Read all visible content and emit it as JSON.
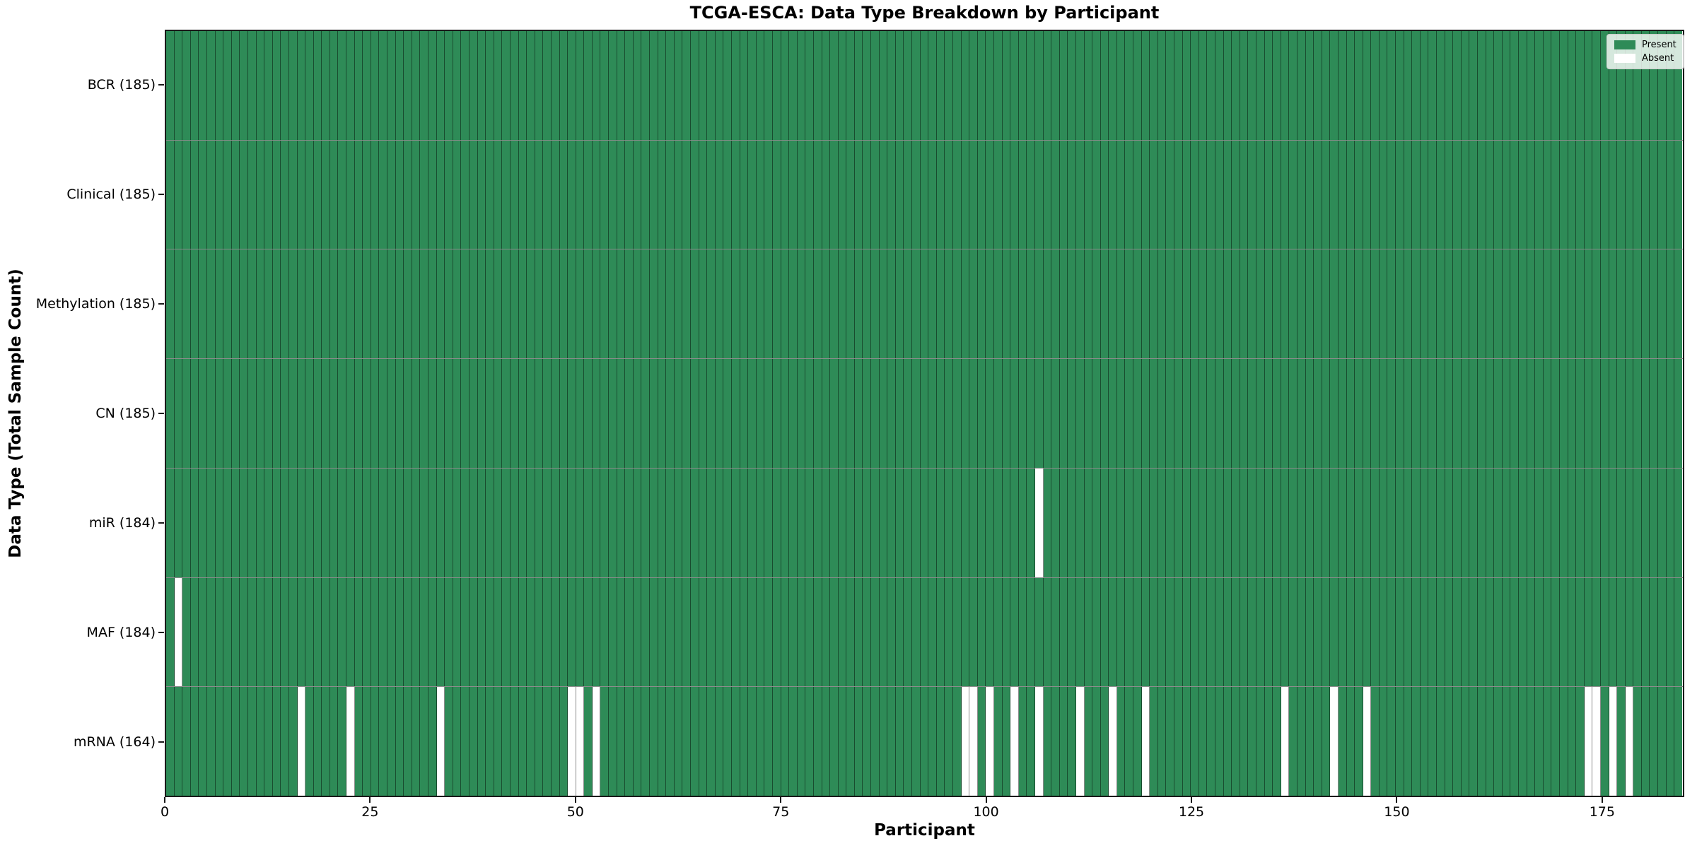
{
  "chart_data": {
    "type": "heatmap",
    "title": "TCGA-ESCA: Data Type Breakdown by Participant",
    "xlabel": "Participant",
    "ylabel": "Data Type (Total Sample Count)",
    "n_participants": 185,
    "xlim": [
      0,
      185
    ],
    "x_ticks": [
      0,
      25,
      50,
      75,
      100,
      125,
      150,
      175
    ],
    "grid": "cell-edges",
    "legend": {
      "position": "upper-right",
      "entries": [
        {
          "label": "Present",
          "value": "present"
        },
        {
          "label": "Absent",
          "value": "absent"
        }
      ]
    },
    "colors": {
      "present": "#2e8b57",
      "absent": "#ffffff",
      "cell_edge": "rgba(0,0,0,0.45)",
      "spine": "#1a1a1a",
      "text": "#000000"
    },
    "ytick_label_format": "{label} ({total})",
    "rows": [
      {
        "label": "BCR",
        "total": 185,
        "absent_participants": []
      },
      {
        "label": "Clinical",
        "total": 185,
        "absent_participants": []
      },
      {
        "label": "Methylation",
        "total": 185,
        "absent_participants": []
      },
      {
        "label": "CN",
        "total": 185,
        "absent_participants": []
      },
      {
        "label": "miR",
        "total": 184,
        "absent_participants": [
          106
        ]
      },
      {
        "label": "MAF",
        "total": 184,
        "absent_participants": [
          1
        ]
      },
      {
        "label": "mRNA",
        "total": 164,
        "absent_participants": [
          16,
          22,
          33,
          49,
          50,
          52,
          97,
          98,
          100,
          103,
          106,
          111,
          115,
          119,
          136,
          142,
          146,
          173,
          174,
          176,
          178
        ]
      }
    ]
  }
}
